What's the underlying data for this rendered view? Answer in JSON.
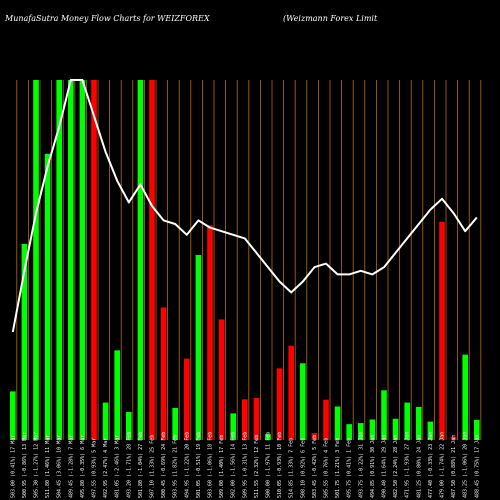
{
  "chart_data": {
    "type": "bar",
    "title": "MunafaSutra Money Flow Charts for WEIZFOREX",
    "subtitle": "(Weizmann Forex Limit",
    "colors": {
      "up": "#00ff00",
      "down": "#ff0000",
      "line": "#ffffff",
      "grid": "#b86a0a",
      "background": "#000000"
    },
    "grid": true,
    "ylim": [
      0,
      100
    ],
    "categories": [
      "503.00 (0.41%) 17 Mar",
      "500.95 (-0.86%) 13 Mar",
      "505.30 (-1.27%) 12 Mar",
      "511.80 (1.46%) 11 Mar",
      "504.45 (3.06%) 10 Mar",
      "489.45 (-1.28%) 7 Mar",
      "495.80 (-0.35%) 6 Mar",
      "497.55 (0.93%) 5 Mar",
      "492.95 (2.47%) 4 Mar",
      "481.05 (-2.46%) 3 Mar",
      "493.20 (-1.71%) 28 Feb",
      "501.80 (-1.04%) 27 Feb",
      "507.10 (1.33%) 25 Feb",
      "500.45 (-0.69%) 24 Feb",
      "503.95 (1.82%) 21 Feb",
      "494.95 (-1.22%) 20 Feb",
      "501.05 (-0.51%) 19 Feb",
      "503.60 (-1.06%) 18 Feb",
      "509.00 (1.40%) 17 Feb",
      "502.00 (-1.56%) 14 Feb",
      "509.95 (-0.31%) 13 Feb",
      "511.55 (2.32%) 12 Feb",
      "500.00 (-1.97%) 11 Feb",
      "510.05 (-0.93%) 10 Feb",
      "514.85 (1.33%) 7 Feb",
      "508.10 (0.92%) 6 Feb",
      "503.45 (-0.42%) 5 Feb",
      "505.55 (0.76%) 4 Feb",
      "501.75 (1.21%) 3 Feb",
      "495.75 (0.41%) 1 Feb",
      "493.75 (-0.22%) 31 Jan",
      "494.85 (0.91%) 30 Jan",
      "490.40 (1.64%) 29 Jan",
      "482.50 (2.24%) 28 Jan",
      "471.95 (-1.93%) 27 Jan",
      "481.25 (0.80%) 24 Jan",
      "477.40 (-0.33%) 23 Jan",
      "479.00 (-1.74%) 22 Jan",
      "487.50 (0.88%) 21 Jan",
      "483.25 (-1.06%) 20 Jan",
      "488.45 (0.75%) 17 Jan"
    ],
    "series": [
      {
        "kind": "bar",
        "up": [
          true,
          true,
          true,
          true,
          true,
          true,
          true,
          false,
          true,
          true,
          true,
          true,
          false,
          false,
          true,
          false,
          true,
          false,
          false,
          true,
          false,
          false,
          true,
          false,
          false,
          true,
          false,
          false,
          true,
          true,
          true,
          true,
          true,
          true,
          true,
          true,
          true,
          false,
          false,
          true,
          true
        ],
        "values": [
          13.5,
          54.5,
          100,
          79.5,
          100,
          100,
          100,
          100,
          10.4,
          24.9,
          7.8,
          100,
          100,
          36.8,
          8.9,
          22.6,
          51.4,
          59.6,
          33.5,
          7.4,
          11.3,
          11.7,
          1.6,
          19.9,
          26.2,
          21.3,
          1.9,
          11.2,
          9.3,
          4.4,
          4.7,
          5.7,
          13.8,
          5.9,
          10.4,
          9.2,
          5.1,
          60.6,
          0.9,
          23.7,
          5.6
        ]
      },
      {
        "kind": "line",
        "values": [
          30,
          47,
          63,
          76,
          87,
          100,
          100,
          90,
          80,
          72,
          66,
          71,
          65,
          61,
          60,
          57,
          61,
          59,
          58,
          57,
          56,
          52,
          48,
          44,
          41,
          44,
          48,
          49,
          46,
          46,
          47,
          46,
          48,
          52,
          56,
          60,
          64,
          67,
          63,
          58,
          61.8
        ]
      }
    ]
  }
}
